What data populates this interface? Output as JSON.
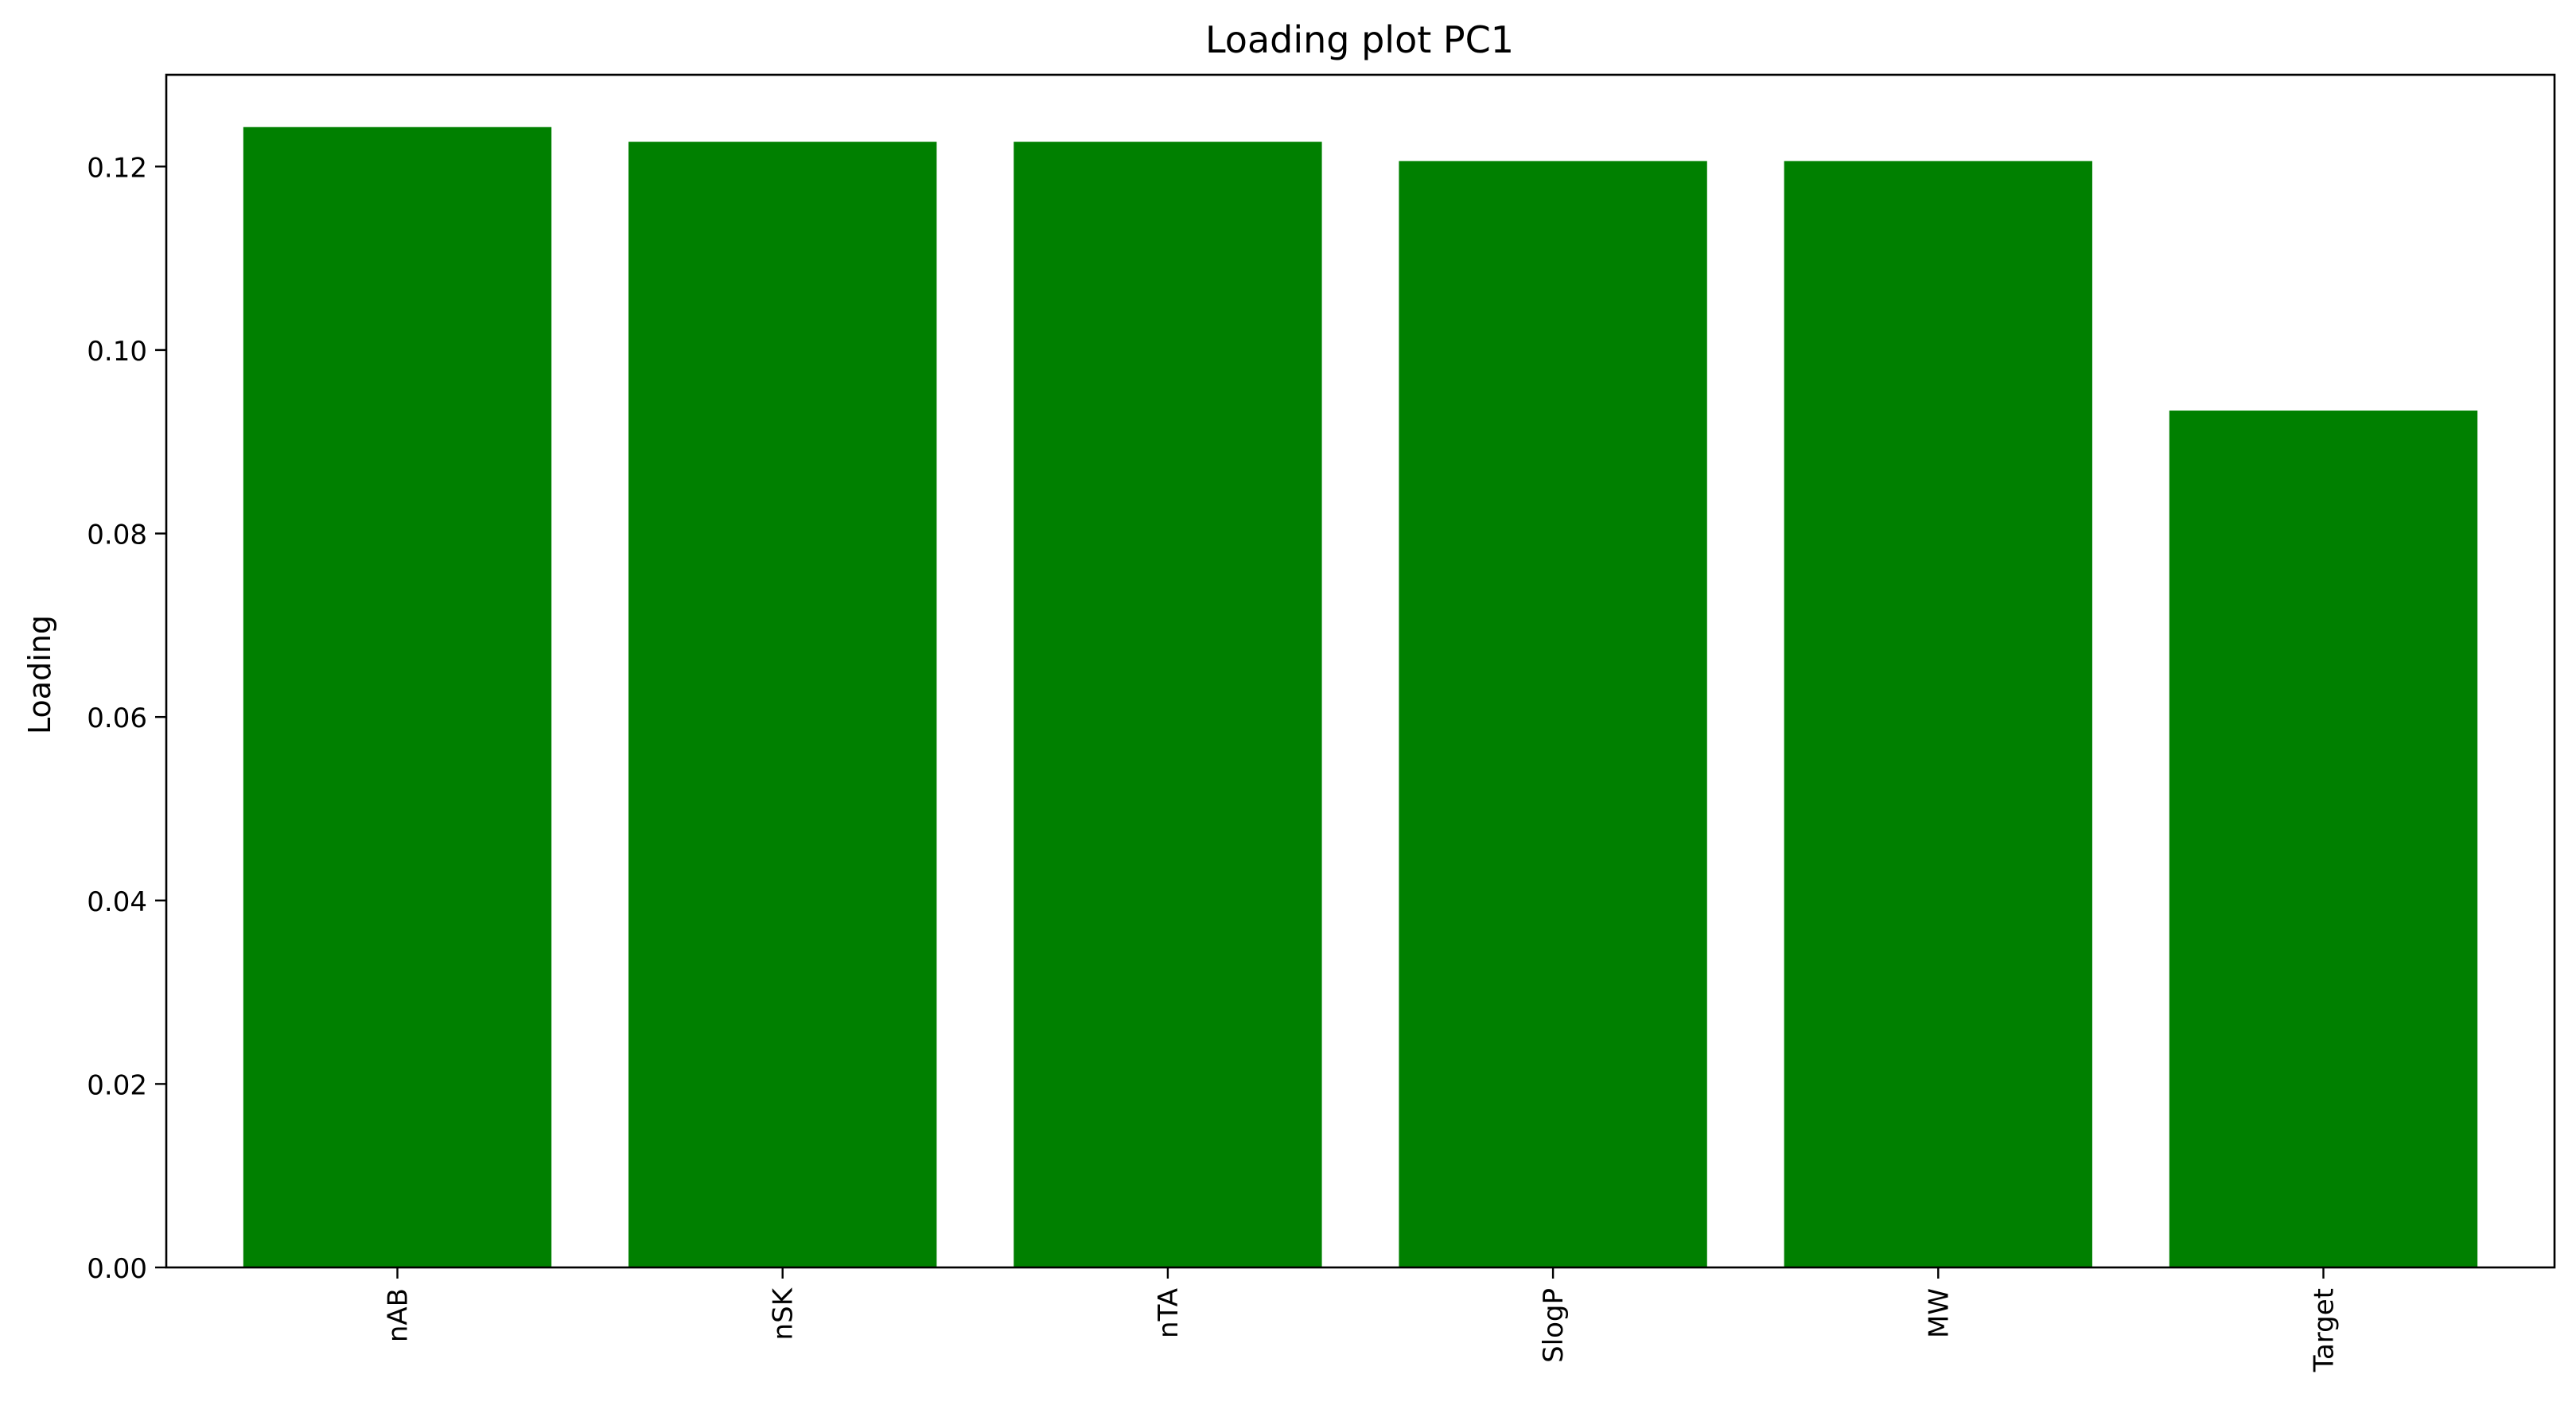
{
  "chart_data": {
    "type": "bar",
    "title": "Loading plot PC1",
    "xlabel": "",
    "ylabel": "Loading",
    "categories": [
      "nAB",
      "nSK",
      "nTA",
      "SlogP",
      "MW",
      "Target"
    ],
    "values": [
      0.1243,
      0.1227,
      0.1227,
      0.1206,
      0.1206,
      0.0934
    ],
    "ylim": [
      0,
      0.13
    ],
    "yticks": [
      0.0,
      0.02,
      0.04,
      0.06,
      0.08,
      0.1,
      0.12
    ],
    "ytick_labels": [
      "0.00",
      "0.02",
      "0.04",
      "0.06",
      "0.08",
      "0.10",
      "0.12"
    ],
    "bar_color": "#008000",
    "grid": false,
    "legend": "none",
    "xtick_rotation": "vertical"
  }
}
